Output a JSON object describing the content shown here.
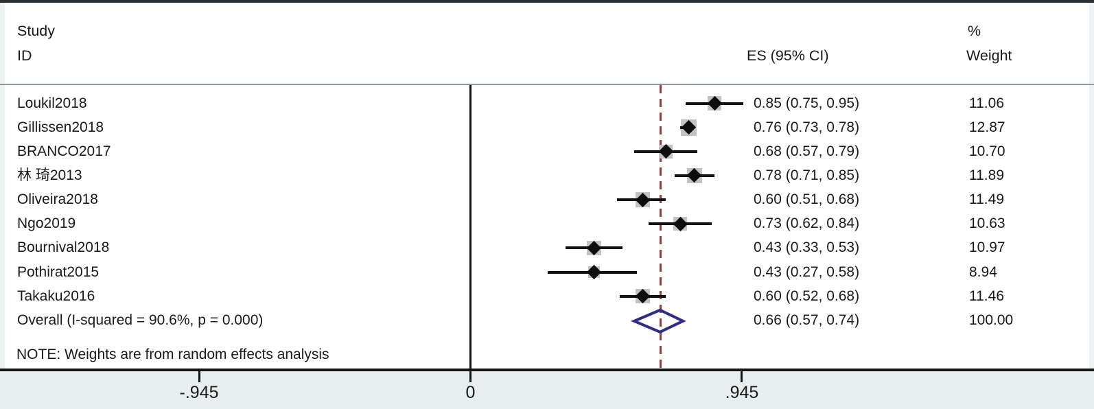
{
  "header": {
    "study_col_line1": "Study",
    "study_col_line2": "ID",
    "es_col": "ES (95% CI)",
    "weight_col_line1": "%",
    "weight_col_line2": "Weight"
  },
  "note": "NOTE: Weights are from random effects analysis",
  "chart_data": {
    "type": "scatter",
    "subtype": "forest-plot",
    "title": "",
    "xlabel": "",
    "ylabel": "",
    "grid": false,
    "legend_position": "none",
    "x_ticks": [
      -0.945,
      0,
      0.945
    ],
    "x_tick_labels": [
      "-.945",
      "0",
      ".945"
    ],
    "null_line_x": 0,
    "overall_line_x": 0.66,
    "studies": [
      {
        "id": "Loukil2018",
        "es": 0.85,
        "ci_low": 0.75,
        "ci_high": 0.95,
        "es_label": "0.85 (0.75, 0.95)",
        "weight": 11.06,
        "weight_label": "11.06"
      },
      {
        "id": "Gillissen2018",
        "es": 0.76,
        "ci_low": 0.73,
        "ci_high": 0.78,
        "es_label": "0.76 (0.73, 0.78)",
        "weight": 12.87,
        "weight_label": "12.87"
      },
      {
        "id": "BRANCO2017",
        "es": 0.68,
        "ci_low": 0.57,
        "ci_high": 0.79,
        "es_label": "0.68 (0.57, 0.79)",
        "weight": 10.7,
        "weight_label": "10.70"
      },
      {
        "id": "林 琦2013",
        "es": 0.78,
        "ci_low": 0.71,
        "ci_high": 0.85,
        "es_label": "0.78 (0.71, 0.85)",
        "weight": 11.89,
        "weight_label": "11.89"
      },
      {
        "id": "Oliveira2018",
        "es": 0.6,
        "ci_low": 0.51,
        "ci_high": 0.68,
        "es_label": "0.60 (0.51, 0.68)",
        "weight": 11.49,
        "weight_label": "11.49"
      },
      {
        "id": "Ngo2019",
        "es": 0.73,
        "ci_low": 0.62,
        "ci_high": 0.84,
        "es_label": "0.73 (0.62, 0.84)",
        "weight": 10.63,
        "weight_label": "10.63"
      },
      {
        "id": "Bournival2018",
        "es": 0.43,
        "ci_low": 0.33,
        "ci_high": 0.53,
        "es_label": "0.43 (0.33, 0.53)",
        "weight": 10.97,
        "weight_label": "10.97"
      },
      {
        "id": "Pothirat2015",
        "es": 0.43,
        "ci_low": 0.27,
        "ci_high": 0.58,
        "es_label": "0.43 (0.27, 0.58)",
        "weight": 8.94,
        "weight_label": "8.94"
      },
      {
        "id": "Takaku2016",
        "es": 0.6,
        "ci_low": 0.52,
        "ci_high": 0.68,
        "es_label": "0.60 (0.52, 0.68)",
        "weight": 11.46,
        "weight_label": "11.46"
      }
    ],
    "overall": {
      "id": "Overall  (I-squared = 90.6%, p = 0.000)",
      "i_squared": "90.6%",
      "p_value": "0.000",
      "es": 0.66,
      "ci_low": 0.57,
      "ci_high": 0.74,
      "es_label": "0.66 (0.57, 0.74)",
      "weight": 100.0,
      "weight_label": "100.00"
    },
    "note": "NOTE: Weights are from random effects analysis"
  },
  "colors": {
    "dashed_line": "#9d3b3b",
    "overall_diamond": "#2e2c87",
    "weight_box": "#c3c3c3",
    "ci_line": "#111111",
    "axis_band": "#e7eeee",
    "text": "#1a1a1a"
  }
}
